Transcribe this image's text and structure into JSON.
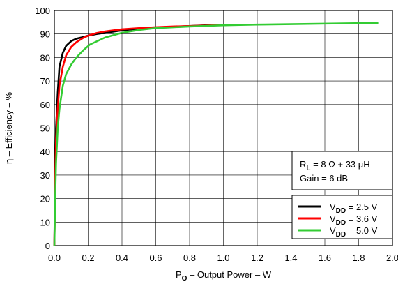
{
  "chart_data": {
    "type": "line",
    "xlabel": {
      "main": "P",
      "sub": "O",
      "rest": " – Output Power – W"
    },
    "ylabel": "η – Efficiency – %",
    "xlim": [
      0,
      2.0
    ],
    "ylim": [
      0,
      100
    ],
    "x_ticks": [
      0.0,
      0.2,
      0.4,
      0.6,
      0.8,
      1.0,
      1.2,
      1.4,
      1.6,
      1.8,
      2.0
    ],
    "x_tick_labels": [
      "0.0",
      "0.2",
      "0.4",
      "0.6",
      "0.8",
      "1.0",
      "1.2",
      "1.4",
      "1.6",
      "1.8",
      "2.0"
    ],
    "y_ticks": [
      0,
      10,
      20,
      30,
      40,
      50,
      60,
      70,
      80,
      90,
      100
    ],
    "y_tick_labels": [
      "0",
      "10",
      "20",
      "30",
      "40",
      "50",
      "60",
      "70",
      "80",
      "90",
      "100"
    ],
    "grid": true,
    "annotation": {
      "line1": {
        "main": "R",
        "sub": "L",
        "rest": " = 8 Ω + 33 μH"
      },
      "line2": "Gain = 6 dB"
    },
    "legend_position": "bottom-right",
    "series": [
      {
        "name": {
          "main": "V",
          "sub": "DD",
          "rest": " = 2.5 V"
        },
        "color": "#000000",
        "x": [
          0.0,
          0.005,
          0.01,
          0.02,
          0.03,
          0.05,
          0.07,
          0.1,
          0.13,
          0.17,
          0.2,
          0.25,
          0.3,
          0.4,
          0.5,
          0.6,
          0.7,
          0.8,
          0.9,
          0.98
        ],
        "y": [
          0,
          33,
          50,
          65,
          76,
          82,
          85,
          87,
          88,
          88.7,
          89.3,
          90,
          90.5,
          91.5,
          92.3,
          92.8,
          93.1,
          93.4,
          93.7,
          93.9
        ]
      },
      {
        "name": {
          "main": "V",
          "sub": "DD",
          "rest": " = 3.6 V"
        },
        "color": "#ff0000",
        "x": [
          0.0,
          0.005,
          0.01,
          0.02,
          0.03,
          0.05,
          0.07,
          0.1,
          0.13,
          0.17,
          0.2,
          0.25,
          0.3,
          0.4,
          0.5,
          0.6,
          0.7,
          0.8,
          0.9,
          0.98
        ],
        "y": [
          0,
          28,
          45,
          58,
          68,
          76,
          81,
          84.5,
          86.5,
          88.3,
          89.3,
          90.4,
          91.1,
          92,
          92.5,
          92.9,
          93.2,
          93.4,
          93.6,
          93.8
        ]
      },
      {
        "name": {
          "main": "V",
          "sub": "DD",
          "rest": " = 5.0 V"
        },
        "color": "#33cc33",
        "x": [
          0.0,
          0.005,
          0.01,
          0.02,
          0.03,
          0.05,
          0.07,
          0.1,
          0.13,
          0.17,
          0.21,
          0.3,
          0.4,
          0.5,
          0.6,
          0.8,
          1.0,
          1.2,
          1.4,
          1.6,
          1.8,
          1.92
        ],
        "y": [
          0,
          20,
          35,
          50,
          58,
          68,
          73,
          77,
          80,
          83,
          85.5,
          88.5,
          90.5,
          91.7,
          92.5,
          93.2,
          93.7,
          94,
          94.2,
          94.4,
          94.6,
          94.7
        ]
      }
    ]
  }
}
